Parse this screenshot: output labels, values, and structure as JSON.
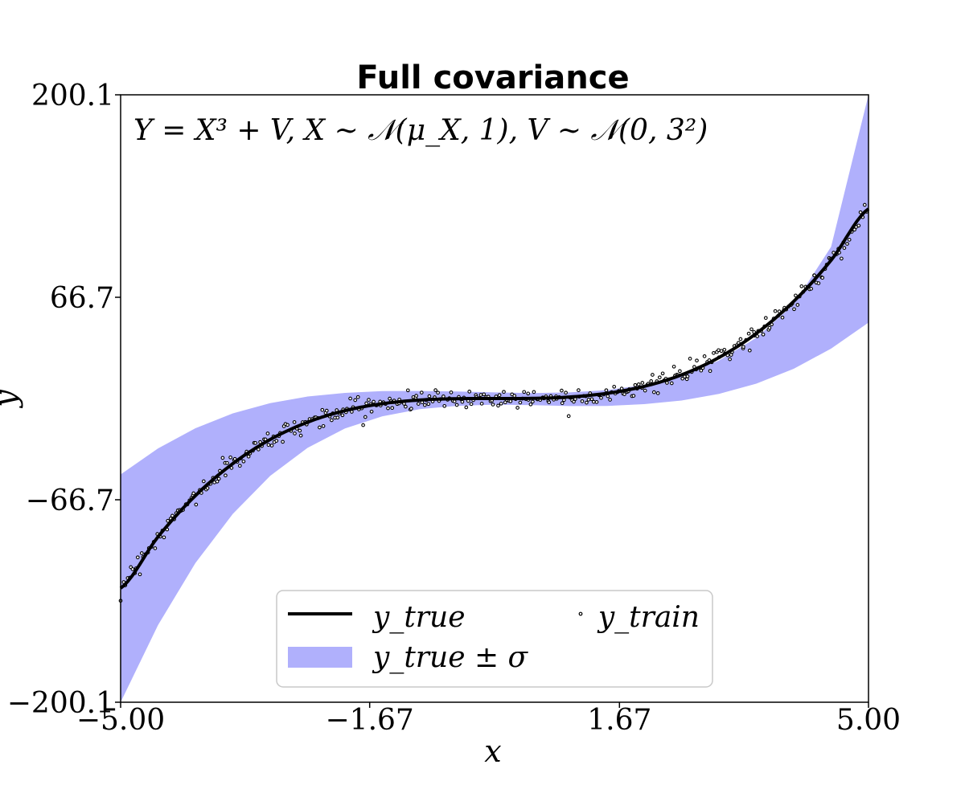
{
  "chart_data": {
    "type": "line",
    "title": "Full covariance",
    "annotation": "Y = X³ + V,  X ∼ 𝒩(μ_X, 1),  V ∼ 𝒩(0, 3²)",
    "xlabel": "x",
    "ylabel": "y",
    "xlim": [
      -5.0,
      5.0
    ],
    "ylim": [
      -200.1,
      200.1
    ],
    "x_ticks": [
      -5.0,
      -1.67,
      1.67,
      5.0
    ],
    "x_tick_labels": [
      "−5.00",
      "−1.67",
      "1.67",
      "5.00"
    ],
    "y_ticks": [
      -200.1,
      -66.7,
      66.7,
      200.1
    ],
    "y_tick_labels": [
      "−200.1",
      "−66.7",
      "66.7",
      "200.1"
    ],
    "grid": false,
    "legend_placement": "lower center",
    "colors": {
      "true_line": "#000000",
      "band": "#b0b0fc",
      "points": "#000000"
    },
    "series": [
      {
        "name": "y_true",
        "kind": "line",
        "x": [
          -5.0,
          -4.5,
          -4.0,
          -3.5,
          -3.0,
          -2.5,
          -2.0,
          -1.5,
          -1.0,
          -0.5,
          0.0,
          0.5,
          1.0,
          1.5,
          2.0,
          2.5,
          3.0,
          3.5,
          4.0,
          4.5,
          5.0
        ],
        "y": [
          -125,
          -91.1,
          -64,
          -42.9,
          -27,
          -15.6,
          -8,
          -3.4,
          -1,
          -0.1,
          0,
          0.1,
          1,
          3.4,
          8,
          15.6,
          27,
          42.9,
          64,
          91.1,
          125
        ]
      },
      {
        "name": "y_true ± σ",
        "kind": "band",
        "x": [
          -5.0,
          -4.5,
          -4.0,
          -3.5,
          -3.0,
          -2.5,
          -2.0,
          -1.5,
          -1.0,
          -0.5,
          0.0,
          0.5,
          1.0,
          1.5,
          2.0,
          2.5,
          3.0,
          3.5,
          4.0,
          4.5,
          5.0
        ],
        "upper": [
          -50,
          -32.9,
          -19.6,
          -9.8,
          -3.0,
          1.3,
          3.7,
          4.9,
          5.0,
          4.6,
          4.0,
          3.6,
          4.0,
          5.5,
          9.0,
          15.0,
          25.0,
          40.0,
          62.0,
          100.0,
          200.1
        ],
        "lower": [
          -200.1,
          -149.3,
          -108.4,
          -76.0,
          -51.0,
          -32.5,
          -19.7,
          -11.7,
          -7.0,
          -4.8,
          -4.0,
          -4.4,
          -5.0,
          -4.9,
          -3.7,
          -1.3,
          3.0,
          9.8,
          19.6,
          32.9,
          50.0
        ]
      },
      {
        "name": "y_train",
        "kind": "scatter",
        "generator": "y = x^3 + noise, noise sd ≈ 3, x evenly spaced on [-5, 5]",
        "count": 400,
        "noise_sd": 3
      }
    ],
    "legend": [
      {
        "label": "y_true",
        "symbol": "line"
      },
      {
        "label": "y_train",
        "symbol": "point"
      },
      {
        "label": "y_true ± σ",
        "symbol": "band"
      }
    ]
  }
}
